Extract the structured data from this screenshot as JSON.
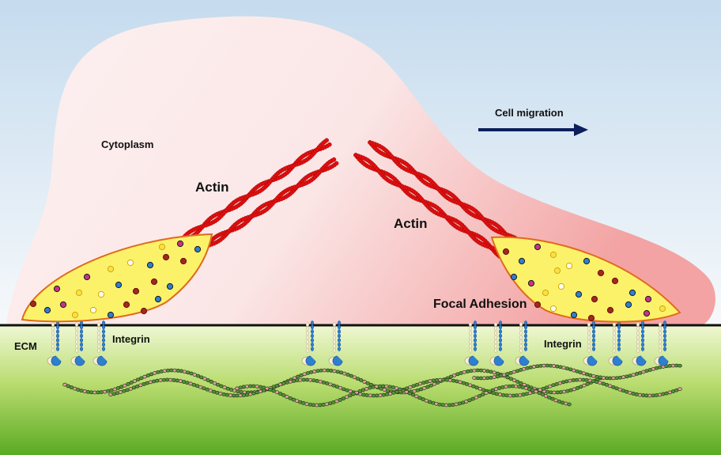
{
  "labels": {
    "cytoplasm": "Cytoplasm",
    "cell_migration": "Cell migration",
    "actin_left": "Actin",
    "actin_right": "Actin",
    "focal_adhesion": "Focal Adhesion",
    "ecm": "ECM",
    "integrin_left": "Integrin",
    "integrin_right": "Integrin"
  },
  "colors": {
    "sky_top": "#c7dcef",
    "sky_bottom": "#f4f8fb",
    "cell_body": "#fbe8e8",
    "cell_shadow": "#f2a7a7",
    "adhesion_fill": "#fbf26a",
    "adhesion_border": "#e06a1a",
    "actin": "#e01010",
    "arrow": "#0b1f5c",
    "ecm_top": "#e6f3c0",
    "ecm_bottom": "#6cb52a",
    "fiber_green": "#5a8f3c",
    "fiber_pink": "#e79aa6",
    "integrin_blue": "#2f7fd0",
    "integrin_cream": "#f5efd8",
    "membrane": "#111111"
  },
  "icons": {
    "arrow": "right-arrow-icon"
  }
}
